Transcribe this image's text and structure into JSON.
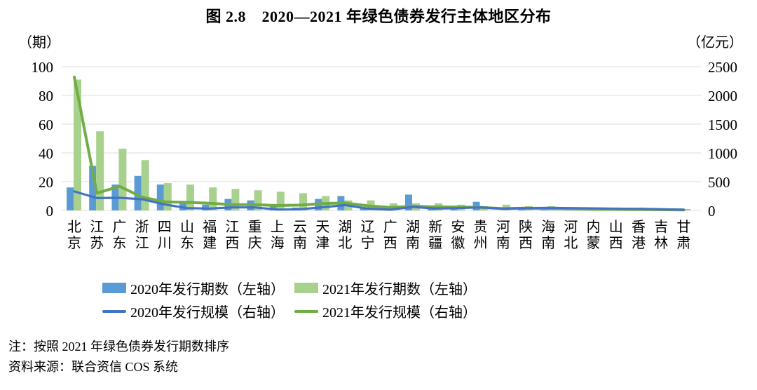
{
  "title": "图 2.8　2020—2021 年绿色债券发行主体地区分布",
  "left_axis_unit": "（期）",
  "right_axis_unit": "（亿元）",
  "legend": {
    "items": [
      {
        "label": "2020年发行期数（左轴）",
        "kind": "bar",
        "color": "#5B9BD5"
      },
      {
        "label": "2021年发行期数（左轴）",
        "kind": "bar",
        "color": "#A9D18E"
      },
      {
        "label": "2020年发行规模（右轴）",
        "kind": "line",
        "color": "#4472C4"
      },
      {
        "label": "2021年发行规模（右轴）",
        "kind": "line",
        "color": "#70AD47"
      }
    ]
  },
  "notes": {
    "note": "注：按照 2021 年绿色债券发行期数排序",
    "source": "资料来源：联合资信 COS 系统"
  },
  "colors": {
    "bar_2020": "#5B9BD5",
    "bar_2021": "#A9D18E",
    "line_2020": "#4472C4",
    "line_2021": "#70AD47",
    "gridline": "#DCDCDC",
    "text": "#000000"
  },
  "chart_data": {
    "type": "bar",
    "subtype": "bar-line-combo",
    "title": "图 2.8　2020—2021 年绿色债券发行主体地区分布",
    "xlabel": "",
    "ylabel_left": "（期）",
    "ylabel_right": "（亿元）",
    "left_ticks": [
      0,
      20,
      40,
      60,
      80,
      100
    ],
    "right_ticks": [
      0,
      500,
      1000,
      1500,
      2000,
      2500
    ],
    "left_ylim": [
      0,
      100
    ],
    "right_ylim": [
      0,
      2500
    ],
    "grid": true,
    "legend_position": "bottom",
    "categories": [
      "北京",
      "江苏",
      "广东",
      "浙江",
      "四川",
      "山东",
      "福建",
      "江西",
      "重庆",
      "上海",
      "云南",
      "天津",
      "湖北",
      "辽宁",
      "广西",
      "湖南",
      "新疆",
      "安徽",
      "贵州",
      "河南",
      "陕西",
      "海南",
      "河北",
      "内蒙",
      "山西",
      "香港",
      "吉林",
      "甘肃"
    ],
    "series": [
      {
        "name": "2020年发行期数（左轴）",
        "type": "bar",
        "axis": "left",
        "color": "#5B9BD5",
        "values": [
          16,
          31,
          18,
          24,
          18,
          5,
          4,
          8,
          7,
          4,
          2,
          8,
          10,
          2,
          2,
          11,
          1,
          3,
          6,
          0,
          2,
          1,
          1,
          0,
          1,
          0,
          0,
          0
        ]
      },
      {
        "name": "2021年发行期数（左轴）",
        "type": "bar",
        "axis": "left",
        "color": "#A9D18E",
        "values": [
          91,
          55,
          43,
          35,
          19,
          18,
          16,
          15,
          14,
          13,
          12,
          10,
          7,
          7,
          5,
          5,
          5,
          4,
          3,
          4,
          3,
          3,
          2,
          2,
          1,
          2,
          1,
          1
        ]
      },
      {
        "name": "2020年发行规模（右轴）",
        "type": "line",
        "axis": "right",
        "color": "#4472C4",
        "values": [
          330,
          215,
          220,
          195,
          105,
          40,
          33,
          52,
          52,
          15,
          20,
          55,
          93,
          32,
          12,
          61,
          32,
          40,
          52,
          30,
          40,
          45,
          40,
          35,
          30,
          28,
          22,
          12
        ]
      },
      {
        "name": "2021年发行规模（右轴）",
        "type": "line",
        "axis": "right",
        "color": "#70AD47",
        "values": [
          2320,
          300,
          420,
          230,
          150,
          140,
          125,
          100,
          100,
          85,
          93,
          120,
          130,
          81,
          53,
          73,
          61,
          60,
          53,
          32,
          40,
          32,
          24,
          20,
          18,
          15,
          12,
          10
        ]
      }
    ]
  }
}
